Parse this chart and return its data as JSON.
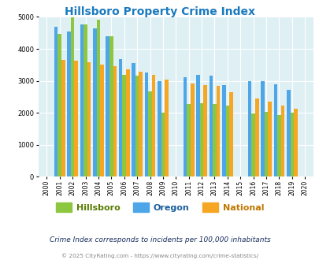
{
  "title": "Hillsboro Property Crime Index",
  "title_color": "#1a7abf",
  "subtitle": "Crime Index corresponds to incidents per 100,000 inhabitants",
  "footer": "© 2025 CityRating.com - https://www.cityrating.com/crime-statistics/",
  "years": [
    2000,
    2001,
    2002,
    2003,
    2004,
    2005,
    2006,
    2007,
    2008,
    2009,
    2010,
    2011,
    2012,
    2013,
    2014,
    2015,
    2016,
    2017,
    2018,
    2019,
    2020
  ],
  "hillsboro": [
    null,
    4480,
    4990,
    4760,
    4920,
    4390,
    3200,
    3170,
    2680,
    2000,
    null,
    2270,
    2300,
    2270,
    2230,
    null,
    1970,
    2020,
    1940,
    2000,
    null
  ],
  "oregon": [
    null,
    4700,
    4550,
    4760,
    4640,
    4400,
    3670,
    3560,
    3270,
    3000,
    null,
    3110,
    3200,
    3170,
    2880,
    null,
    2980,
    2990,
    2900,
    2720,
    null
  ],
  "national": [
    null,
    3660,
    3620,
    3580,
    3510,
    3450,
    3350,
    3280,
    3200,
    3040,
    null,
    2920,
    2870,
    2840,
    2640,
    null,
    2440,
    2360,
    2220,
    2120,
    null
  ],
  "hillsboro_color": "#8dc63f",
  "oregon_color": "#4da6e8",
  "national_color": "#f5a623",
  "hillsboro_label_color": "#5a7a00",
  "oregon_label_color": "#1a5fa0",
  "national_label_color": "#c07800",
  "bg_color": "#dff0f5",
  "ylim": [
    0,
    5000
  ],
  "yticks": [
    0,
    1000,
    2000,
    3000,
    4000,
    5000
  ]
}
